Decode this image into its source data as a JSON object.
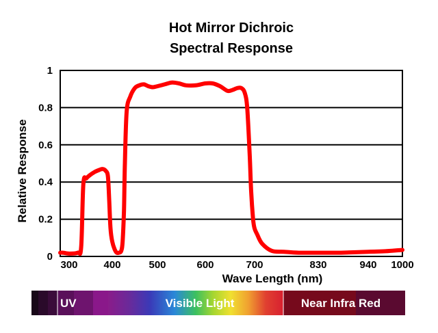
{
  "chart_data": {
    "type": "line",
    "title_line1": "Hot Mirror Dichroic",
    "title_line2": "Spectral Response",
    "xlabel": "Wave Length (nm)",
    "ylabel": "Relative Response",
    "x_ticks": [
      "300",
      "400",
      "500",
      "600",
      "700",
      "830",
      "940",
      "1000"
    ],
    "y_ticks": [
      "0",
      "0.2",
      "0.4",
      "0.6",
      "0.8",
      "1"
    ],
    "ylim": [
      0,
      1
    ],
    "grid": true,
    "line_color": "#ff0000",
    "series": [
      {
        "x": [
          270,
          280,
          300,
          320,
          328,
          333,
          340,
          350,
          360,
          370,
          378,
          385,
          390,
          393,
          396,
          400,
          405,
          410,
          415,
          420,
          423,
          426,
          428,
          432,
          440,
          450,
          460,
          470,
          480,
          490,
          500,
          515,
          530,
          545,
          560,
          580,
          600,
          615,
          630,
          645,
          655,
          665,
          673,
          680,
          685,
          690,
          693,
          697,
          700,
          705,
          715,
          735,
          760,
          790,
          830,
          880,
          940,
          970,
          1000
        ],
        "y": [
          0.02,
          0.02,
          0.015,
          0.02,
          0.05,
          0.39,
          0.42,
          0.44,
          0.455,
          0.465,
          0.47,
          0.46,
          0.43,
          0.3,
          0.15,
          0.08,
          0.04,
          0.02,
          0.02,
          0.03,
          0.08,
          0.25,
          0.5,
          0.78,
          0.86,
          0.905,
          0.92,
          0.925,
          0.915,
          0.91,
          0.915,
          0.925,
          0.935,
          0.93,
          0.92,
          0.92,
          0.93,
          0.93,
          0.915,
          0.89,
          0.895,
          0.905,
          0.905,
          0.88,
          0.8,
          0.55,
          0.35,
          0.2,
          0.15,
          0.12,
          0.07,
          0.03,
          0.025,
          0.02,
          0.02,
          0.02,
          0.025,
          0.028,
          0.035
        ]
      }
    ]
  },
  "spectrum_bar": {
    "labels": [
      {
        "text": "UV",
        "color": "#ffffff"
      },
      {
        "text": "Visible Light",
        "color": "#ffffff"
      },
      {
        "text": "Near Infra Red",
        "color": "#ffffff"
      }
    ]
  }
}
